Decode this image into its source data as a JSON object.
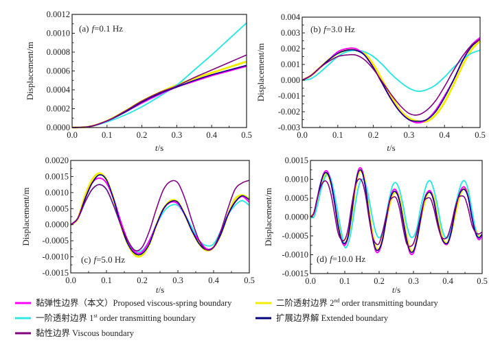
{
  "legend": [
    {
      "key": "proposed",
      "color": "#ff00ff",
      "parts": [
        "黏弹性边界（本文）Proposed viscous-spring boundary"
      ]
    },
    {
      "key": "first",
      "color": "#33e6e6",
      "parts": [
        "一阶透射边界 1",
        "st",
        " order transmitting boundary"
      ]
    },
    {
      "key": "viscous",
      "color": "#800080",
      "parts": [
        "黏性边界 Viscous boundary"
      ]
    },
    {
      "key": "second",
      "color": "#f2ee00",
      "parts": [
        "二阶透射边界 2",
        "nd",
        " order transmitting boundary"
      ]
    },
    {
      "key": "extended",
      "color": "#000080",
      "parts": [
        "扩展边界解 Extended boundary"
      ]
    }
  ],
  "chart_data": [
    {
      "type": "line",
      "panel": "(a)",
      "freq_label": "=0.1 Hz",
      "f_symbol": "f",
      "xlabel_t": "t",
      "xlabel_unit": "/s",
      "ylabel": "Displacement/m",
      "xlim": [
        0,
        0.5
      ],
      "ylim": [
        0,
        0.0012
      ],
      "xticks": [
        "0.0",
        "0.1",
        "0.2",
        "0.3",
        "0.4",
        "0.5"
      ],
      "yticks": [
        "0.0000",
        "0.0002",
        "0.0004",
        "0.0006",
        "0.0008",
        "0.0010",
        "0.0012"
      ],
      "x_step": 0.05,
      "series": {
        "second": [
          0,
          1e-05,
          7e-05,
          0.00017,
          0.00028,
          0.00037,
          0.00045,
          0.00052,
          0.00058,
          0.00064,
          0.0007
        ],
        "first": [
          0,
          1e-05,
          6e-05,
          0.00013,
          0.00022,
          0.00033,
          0.00045,
          0.00061,
          0.00077,
          0.00094,
          0.00111
        ],
        "proposed": [
          0,
          1e-05,
          7e-05,
          0.00016,
          0.00026,
          0.00035,
          0.00043,
          0.00049,
          0.00055,
          0.0006,
          0.00065
        ],
        "extended": [
          0,
          1e-05,
          7e-05,
          0.00016,
          0.00027,
          0.00036,
          0.00043,
          0.0005,
          0.00056,
          0.00061,
          0.00066
        ],
        "viscous": [
          0,
          1e-05,
          7e-05,
          0.00017,
          0.00028,
          0.00037,
          0.00044,
          0.00053,
          0.00061,
          0.00069,
          0.00077
        ]
      }
    },
    {
      "type": "line",
      "panel": "(b)",
      "freq_label": "=3.0 Hz",
      "f_symbol": "f",
      "xlabel_t": "t",
      "xlabel_unit": "/s",
      "ylabel": "Displacement/m",
      "xlim": [
        0,
        0.5
      ],
      "ylim": [
        -0.003,
        0.004
      ],
      "xticks": [
        "0.0",
        "0.1",
        "0.2",
        "0.3",
        "0.4",
        "0.5"
      ],
      "yticks": [
        "-0.003",
        "-0.002",
        "-0.001",
        "0.000",
        "0.001",
        "0.002",
        "0.003",
        "0.004"
      ],
      "x_step": 0.025,
      "series": {
        "second": [
          0,
          0.0003,
          0.0008,
          0.0013,
          0.0017,
          0.0019,
          0.0019,
          0.0017,
          0.001,
          0,
          -0.001,
          -0.0019,
          -0.0024,
          -0.0026,
          -0.0026,
          -0.0022,
          -0.0014,
          -0.0003,
          0.0009,
          0.0019,
          0.0025
        ],
        "first": [
          0,
          0.0001,
          0.0005,
          0.001,
          0.0015,
          0.0018,
          0.0019,
          0.0018,
          0.0015,
          0.001,
          0.0004,
          -0.0001,
          -0.0005,
          -0.0007,
          -0.0006,
          -0.0003,
          0.0002,
          0.0008,
          0.0013,
          0.0017,
          0.0019
        ],
        "proposed": [
          0,
          0.0003,
          0.0008,
          0.0013,
          0.0018,
          0.002,
          0.002,
          0.0016,
          0.0008,
          -0.0002,
          -0.0012,
          -0.002,
          -0.0025,
          -0.0027,
          -0.0025,
          -0.0019,
          -0.001,
          0,
          0.0012,
          0.0022,
          0.0027
        ],
        "extended": [
          0,
          0.0003,
          0.0008,
          0.0013,
          0.0017,
          0.0019,
          0.0019,
          0.0016,
          0.0008,
          -0.0002,
          -0.0012,
          -0.002,
          -0.0025,
          -0.0026,
          -0.0025,
          -0.002,
          -0.0011,
          0,
          0.0012,
          0.0021,
          0.0026
        ],
        "viscous": [
          0,
          0.0003,
          0.0008,
          0.0012,
          0.0015,
          0.0016,
          0.0016,
          0.0013,
          0.0007,
          -0.0001,
          -0.0009,
          -0.0016,
          -0.0021,
          -0.0022,
          -0.0019,
          -0.0013,
          -0.0004,
          0.0006,
          0.0015,
          0.0022,
          0.0026
        ]
      }
    },
    {
      "type": "line",
      "panel": "(c)",
      "freq_label": "=5.0 Hz",
      "f_symbol": "f",
      "xlabel_t": "t",
      "xlabel_unit": "/s",
      "ylabel": "Displacement/m",
      "xlim": [
        0,
        0.5
      ],
      "ylim": [
        -0.0015,
        0.002
      ],
      "xticks": [
        "0.0",
        "0.1",
        "0.2",
        "0.3",
        "0.4",
        "0.5"
      ],
      "yticks": [
        "-0.0015",
        "-0.0010",
        "-0.0005",
        "0.0000",
        "0.0005",
        "0.0010",
        "0.0015",
        "0.0020"
      ],
      "x_step": 0.02,
      "series": {
        "second": [
          0,
          0.0002,
          0.0009,
          0.0014,
          0.0016,
          0.0014,
          0.0008,
          0,
          -0.0006,
          -0.00095,
          -0.00095,
          -0.0006,
          0,
          0.0005,
          0.00075,
          0.0007,
          0.0003,
          -0.0002,
          -0.0006,
          -0.0008,
          -0.0007,
          -0.0003,
          0.0003,
          0.0008,
          0.00092,
          0.0008
        ],
        "first": [
          0,
          0.0002,
          0.0007,
          0.0011,
          0.00125,
          0.0011,
          0.0006,
          0,
          -0.0005,
          -0.0008,
          -0.0008,
          -0.0005,
          0,
          0.0004,
          0.0006,
          0.0006,
          0.0003,
          -0.0001,
          -0.0005,
          -0.00065,
          -0.0006,
          -0.0002,
          0.0003,
          0.0006,
          0.00075,
          0.0006
        ],
        "proposed": [
          0,
          0.0002,
          0.0008,
          0.0013,
          0.00145,
          0.0013,
          0.0008,
          0.0001,
          -0.0005,
          -0.00085,
          -0.00085,
          -0.0005,
          0,
          0.0005,
          0.0007,
          0.00065,
          0.0003,
          -0.0002,
          -0.0005,
          -0.00075,
          -0.0007,
          -0.0003,
          0.0003,
          0.0007,
          0.00088,
          0.0007
        ],
        "extended": [
          0,
          0.0002,
          0.0008,
          0.0013,
          0.00155,
          0.0014,
          0.0008,
          0,
          -0.0006,
          -0.0009,
          -0.0009,
          -0.0006,
          0,
          0.0005,
          0.00072,
          0.0007,
          0.0003,
          -0.0002,
          -0.0006,
          -0.00078,
          -0.0007,
          -0.0003,
          0.0003,
          0.0007,
          0.0009,
          0.00078
        ],
        "viscous": [
          0,
          0.0002,
          0.0007,
          0.0011,
          0.00125,
          0.0011,
          0.0006,
          0,
          -0.0005,
          -0.0008,
          -0.0007,
          -0.0002,
          0.0005,
          0.0011,
          0.00135,
          0.0013,
          0.0008,
          0.0001,
          -0.0005,
          -0.00078,
          -0.0007,
          -0.0002,
          0.0005,
          0.0011,
          0.0013,
          0.00138
        ]
      }
    },
    {
      "type": "line",
      "panel": "(d)",
      "freq_label": "=10.0 Hz",
      "f_symbol": "f",
      "xlabel_t": "t",
      "xlabel_unit": "/s",
      "ylabel": "Displacement/m",
      "xlim": [
        0,
        0.5
      ],
      "ylim": [
        -0.0015,
        0.0015
      ],
      "xticks": [
        "0.0",
        "0.1",
        "0.2",
        "0.3",
        "0.4",
        "0.5"
      ],
      "yticks": [
        "-0.0015",
        "-0.0010",
        "-0.0005",
        "0.0000",
        "0.0005",
        "0.0010",
        "0.0015"
      ],
      "x_step": 0.01,
      "series": {
        "second": [
          0,
          0.0001,
          0.0004,
          0.0008,
          0.0011,
          0.00112,
          0.0009,
          0.0005,
          -0.0001,
          -0.0005,
          -0.0007,
          -0.0005,
          0,
          0.0007,
          0.00115,
          0.0012,
          0.0009,
          0.0002,
          -0.0004,
          -0.0008,
          -0.00085,
          -0.0006,
          -0.0001,
          0.0003,
          0.0006,
          0.00065,
          0.0005,
          0,
          -0.0005,
          -0.00085,
          -0.0009,
          -0.0006,
          -0.0001,
          0.0003,
          0.0006,
          0.00065,
          0.0005,
          0,
          -0.0004,
          -0.00065,
          -0.00068,
          -0.0004,
          0,
          0.0004,
          0.00068,
          0.00075,
          0.0006,
          0.0001,
          -0.0003,
          -0.0005,
          -0.0005
        ],
        "first": [
          0,
          0,
          0.0003,
          0.0007,
          0.001,
          0.00115,
          0.001,
          0.0006,
          0.0001,
          -0.0004,
          -0.0008,
          -0.0007,
          -0.0003,
          0.0003,
          0.0008,
          0.001,
          0.0009,
          0.0005,
          0,
          -0.0004,
          -0.00055,
          -0.0004,
          0,
          0.0005,
          0.00085,
          0.0009,
          0.0007,
          0.0003,
          -0.0002,
          -0.0005,
          -0.00052,
          -0.0003,
          0.0002,
          0.0006,
          0.0009,
          0.00095,
          0.0007,
          0.0003,
          -0.0002,
          -0.0005,
          -0.00055,
          -0.0003,
          0.0002,
          0.0006,
          0.0009,
          0.00095,
          0.0007,
          0.0002,
          -0.0003,
          -0.00055,
          -0.0005
        ],
        "proposed": [
          0,
          0.0001,
          0.0005,
          0.0009,
          0.00118,
          0.0012,
          0.0009,
          0.0004,
          -0.0002,
          -0.0006,
          -0.00075,
          -0.0005,
          0.0001,
          0.0008,
          0.00125,
          0.00125,
          0.0008,
          0.0001,
          -0.0005,
          -0.0009,
          -0.0009,
          -0.0006,
          -0.0001,
          0.0004,
          0.0007,
          0.0007,
          0.0004,
          -0.0001,
          -0.0006,
          -0.00095,
          -0.00095,
          -0.0006,
          -0.0001,
          0.0004,
          0.00065,
          0.00068,
          0.0004,
          -0.0001,
          -0.0005,
          -0.0007,
          -0.0007,
          -0.0004,
          0.0001,
          0.0005,
          0.00075,
          0.00078,
          0.0005,
          0,
          -0.0004,
          -0.0006,
          -0.0005
        ],
        "extended": [
          0,
          0.0001,
          0.0005,
          0.0009,
          0.00115,
          0.00115,
          0.0009,
          0.0004,
          -0.0002,
          -0.0006,
          -0.0007,
          -0.0005,
          0.0001,
          0.0008,
          0.0012,
          0.0012,
          0.0008,
          0.0001,
          -0.0005,
          -0.00085,
          -0.00085,
          -0.0006,
          -0.0001,
          0.0004,
          0.00065,
          0.00065,
          0.0004,
          -0.0001,
          -0.0006,
          -0.0009,
          -0.0009,
          -0.0006,
          -0.0001,
          0.0004,
          0.00062,
          0.00064,
          0.0004,
          -0.0001,
          -0.0005,
          -0.00068,
          -0.00068,
          -0.0004,
          0.0001,
          0.0005,
          0.0007,
          0.00072,
          0.0005,
          0,
          -0.0004,
          -0.00055,
          -0.00045
        ],
        "viscous": [
          0,
          0.0001,
          0.0005,
          0.0008,
          0.00095,
          0.0009,
          0.0006,
          0.0001,
          -0.0004,
          -0.0006,
          -0.0006,
          -0.0003,
          0.0003,
          0.0008,
          0.001,
          0.00095,
          0.0006,
          0,
          -0.0005,
          -0.0007,
          -0.0007,
          -0.0004,
          0,
          0.0004,
          0.00052,
          0.0005,
          0.0002,
          -0.0003,
          -0.0007,
          -0.00078,
          -0.0007,
          -0.0004,
          0,
          0.0004,
          0.0005,
          0.00048,
          0.0002,
          -0.0002,
          -0.0005,
          -0.00058,
          -0.0005,
          -0.0002,
          0.0002,
          0.0005,
          0.00056,
          0.0005,
          0.0002,
          -0.0002,
          -0.0004,
          -0.00045,
          -0.0004
        ]
      }
    }
  ]
}
